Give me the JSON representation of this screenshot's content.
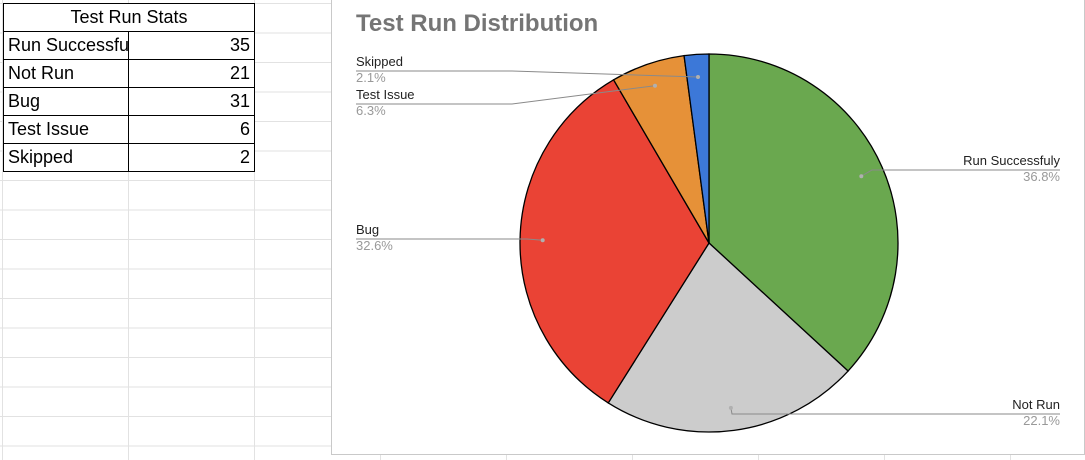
{
  "table": {
    "title": "Test Run Stats",
    "rows": [
      {
        "label": "Run Successfuly",
        "value": "35"
      },
      {
        "label": "Not Run",
        "value": "21"
      },
      {
        "label": "Bug",
        "value": "31"
      },
      {
        "label": "Test Issue",
        "value": "6"
      },
      {
        "label": "Skipped",
        "value": "2"
      }
    ]
  },
  "chart_data": {
    "type": "pie",
    "title": "Test Run Distribution",
    "legend": "labels outside slices with leader lines",
    "slices": [
      {
        "name": "Run Successfuly",
        "value": 35,
        "percent": "36.8%",
        "color": "#6aa84f"
      },
      {
        "name": "Not Run",
        "value": 21,
        "percent": "22.1%",
        "color": "#cccccc"
      },
      {
        "name": "Bug",
        "value": 31,
        "percent": "32.6%",
        "color": "#ea4335"
      },
      {
        "name": "Test Issue",
        "value": 6,
        "percent": "6.3%",
        "color": "#e69138"
      },
      {
        "name": "Skipped",
        "value": 2,
        "percent": "2.1%",
        "color": "#3c78d8"
      }
    ]
  }
}
